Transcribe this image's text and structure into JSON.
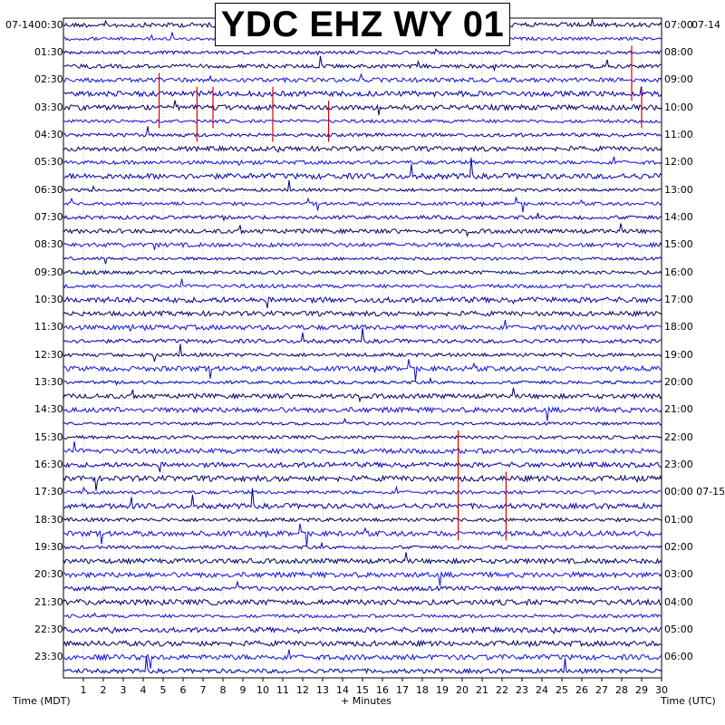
{
  "chart_data": {
    "type": "helicorder",
    "title": "YDC EHZ WY 01",
    "date_left": "07-14",
    "date_right": "07-14",
    "xlabel": "+ Minutes",
    "ylabel_left": "Time (MDT)",
    "ylabel_right": "Time (UTC)",
    "x_ticks": [
      1,
      2,
      3,
      4,
      5,
      6,
      7,
      8,
      9,
      10,
      11,
      12,
      13,
      14,
      15,
      16,
      17,
      18,
      19,
      20,
      21,
      22,
      23,
      24,
      25,
      26,
      27,
      28,
      29,
      30
    ],
    "xlim": [
      0,
      30
    ],
    "rows_per_hour": 2,
    "left_hour_labels": [
      "00:30",
      "01:30",
      "02:30",
      "03:30",
      "04:30",
      "05:30",
      "06:30",
      "07:30",
      "08:30",
      "09:30",
      "10:30",
      "11:30",
      "12:30",
      "13:30",
      "14:30",
      "15:30",
      "16:30",
      "17:30",
      "18:30",
      "19:30",
      "20:30",
      "21:30",
      "22:30",
      "23:30"
    ],
    "right_hour_labels": [
      "07:00",
      "08:00",
      "09:00",
      "10:00",
      "11:00",
      "12:00",
      "13:00",
      "14:00",
      "15:00",
      "16:00",
      "17:00",
      "18:00",
      "19:00",
      "20:00",
      "21:00",
      "22:00",
      "23:00",
      "00:00 07-15",
      "01:00",
      "02:00",
      "03:00",
      "04:00",
      "05:00",
      "06:00"
    ],
    "trace_colors": [
      "#000066",
      "#1111dd",
      "#0000aa"
    ],
    "event_color": "#dd0000"
  }
}
